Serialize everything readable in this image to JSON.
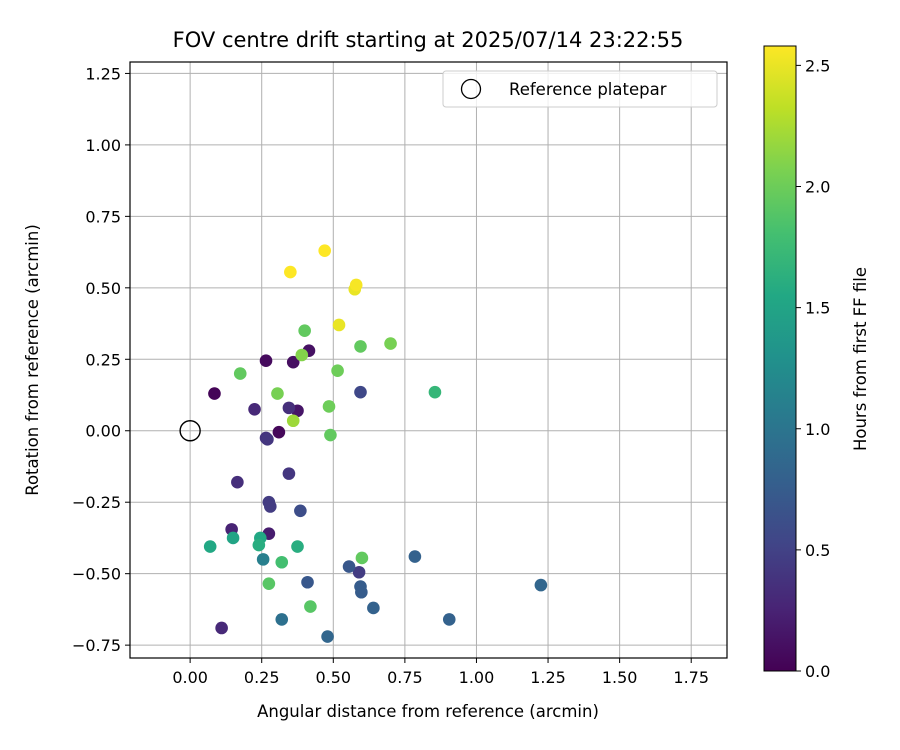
{
  "chart_data": {
    "type": "scatter",
    "title": "FOV centre drift starting at 2025/07/14 23:22:55",
    "xlabel": "Angular distance from reference (arcmin)",
    "ylabel": "Rotation from reference (arcmin)",
    "xlim": [
      -0.21,
      1.875
    ],
    "ylim": [
      -0.795,
      1.29
    ],
    "x_ticks": [
      0.0,
      0.25,
      0.5,
      0.75,
      1.0,
      1.25,
      1.5,
      1.75
    ],
    "x_tick_labels": [
      "0.00",
      "0.25",
      "0.50",
      "0.75",
      "1.00",
      "1.25",
      "1.50",
      "1.75"
    ],
    "y_ticks": [
      -0.75,
      -0.5,
      -0.25,
      0.0,
      0.25,
      0.5,
      0.75,
      1.0,
      1.25
    ],
    "y_tick_labels": [
      "−0.75",
      "−0.50",
      "−0.25",
      "0.00",
      "0.25",
      "0.50",
      "0.75",
      "1.00",
      "1.25"
    ],
    "grid": true,
    "legend": {
      "placement": "top-right",
      "entries": [
        "Reference platepar"
      ]
    },
    "reference": {
      "label": "Reference platepar",
      "x": 0.0,
      "y": 0.0
    },
    "colorbar": {
      "label": "Hours from first FF file",
      "colormap": "viridis",
      "range": [
        0.0,
        2.58
      ],
      "ticks": [
        0.0,
        0.5,
        1.0,
        1.5,
        2.0,
        2.5
      ],
      "tick_labels": [
        "0.0",
        "0.5",
        "1.0",
        "1.5",
        "2.0",
        "2.5"
      ]
    },
    "points": [
      {
        "x": 0.085,
        "y": 0.13,
        "h": 0.02
      },
      {
        "x": 0.31,
        "y": -0.005,
        "h": 0.05
      },
      {
        "x": 0.265,
        "y": 0.245,
        "h": 0.07
      },
      {
        "x": 0.36,
        "y": 0.24,
        "h": 0.1
      },
      {
        "x": 0.415,
        "y": 0.28,
        "h": 0.12
      },
      {
        "x": 0.375,
        "y": 0.07,
        "h": 0.15
      },
      {
        "x": 0.275,
        "y": -0.36,
        "h": 0.2
      },
      {
        "x": 0.145,
        "y": -0.345,
        "h": 0.25
      },
      {
        "x": 0.11,
        "y": -0.69,
        "h": 0.3
      },
      {
        "x": 0.225,
        "y": 0.075,
        "h": 0.3
      },
      {
        "x": 0.345,
        "y": 0.08,
        "h": 0.35
      },
      {
        "x": 0.165,
        "y": -0.18,
        "h": 0.35
      },
      {
        "x": 0.265,
        "y": -0.025,
        "h": 0.38
      },
      {
        "x": 0.27,
        "y": -0.03,
        "h": 0.4
      },
      {
        "x": 0.345,
        "y": -0.15,
        "h": 0.4
      },
      {
        "x": 0.275,
        "y": -0.25,
        "h": 0.45
      },
      {
        "x": 0.28,
        "y": -0.265,
        "h": 0.45
      },
      {
        "x": 0.59,
        "y": -0.495,
        "h": 0.45
      },
      {
        "x": 0.595,
        "y": 0.135,
        "h": 0.55
      },
      {
        "x": 0.385,
        "y": -0.28,
        "h": 0.6
      },
      {
        "x": 0.41,
        "y": -0.53,
        "h": 0.7
      },
      {
        "x": 0.555,
        "y": -0.475,
        "h": 0.7
      },
      {
        "x": 0.595,
        "y": -0.545,
        "h": 0.75
      },
      {
        "x": 0.598,
        "y": -0.565,
        "h": 0.75
      },
      {
        "x": 0.785,
        "y": -0.44,
        "h": 0.8
      },
      {
        "x": 0.64,
        "y": -0.62,
        "h": 0.8
      },
      {
        "x": 0.905,
        "y": -0.66,
        "h": 0.8
      },
      {
        "x": 0.48,
        "y": -0.72,
        "h": 0.85
      },
      {
        "x": 1.225,
        "y": -0.54,
        "h": 0.85
      },
      {
        "x": 0.32,
        "y": -0.66,
        "h": 0.95
      },
      {
        "x": 0.255,
        "y": -0.45,
        "h": 1.1
      },
      {
        "x": 0.245,
        "y": -0.375,
        "h": 1.55
      },
      {
        "x": 0.07,
        "y": -0.405,
        "h": 1.55
      },
      {
        "x": 0.15,
        "y": -0.375,
        "h": 1.5
      },
      {
        "x": 0.24,
        "y": -0.4,
        "h": 1.6
      },
      {
        "x": 0.375,
        "y": -0.405,
        "h": 1.6
      },
      {
        "x": 0.855,
        "y": 0.135,
        "h": 1.7
      },
      {
        "x": 0.32,
        "y": -0.46,
        "h": 1.8
      },
      {
        "x": 0.275,
        "y": -0.535,
        "h": 1.9
      },
      {
        "x": 0.42,
        "y": -0.615,
        "h": 1.9
      },
      {
        "x": 0.6,
        "y": -0.445,
        "h": 1.95
      },
      {
        "x": 0.49,
        "y": -0.015,
        "h": 1.95
      },
      {
        "x": 0.175,
        "y": 0.2,
        "h": 1.95
      },
      {
        "x": 0.4,
        "y": 0.35,
        "h": 1.95
      },
      {
        "x": 0.595,
        "y": 0.295,
        "h": 1.95
      },
      {
        "x": 0.515,
        "y": 0.21,
        "h": 2.0
      },
      {
        "x": 0.485,
        "y": 0.085,
        "h": 2.0
      },
      {
        "x": 0.7,
        "y": 0.305,
        "h": 2.05
      },
      {
        "x": 0.305,
        "y": 0.13,
        "h": 2.05
      },
      {
        "x": 0.39,
        "y": 0.265,
        "h": 2.1
      },
      {
        "x": 0.36,
        "y": 0.035,
        "h": 2.2
      },
      {
        "x": 0.52,
        "y": 0.37,
        "h": 2.5
      },
      {
        "x": 0.575,
        "y": 0.495,
        "h": 2.5
      },
      {
        "x": 0.58,
        "y": 0.51,
        "h": 2.55
      },
      {
        "x": 0.35,
        "y": 0.555,
        "h": 2.58
      },
      {
        "x": 0.47,
        "y": 0.63,
        "h": 2.58
      }
    ]
  }
}
